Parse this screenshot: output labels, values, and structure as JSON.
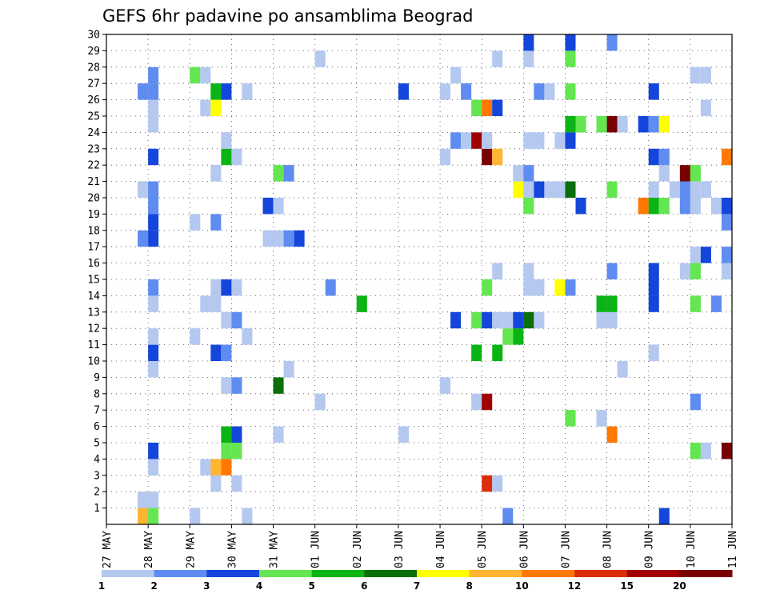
{
  "chart_data": {
    "type": "heatmap",
    "title": "GEFS 6hr padavine po ansamblima Beograd",
    "xlabel": "",
    "ylabel": "",
    "x_unit": "6-hour step",
    "x_range": [
      0,
      60
    ],
    "x_ticks": [
      {
        "step": 0,
        "label": "27 MAY"
      },
      {
        "step": 4,
        "label": "28 MAY"
      },
      {
        "step": 8,
        "label": "29 MAY"
      },
      {
        "step": 12,
        "label": "30 MAY"
      },
      {
        "step": 16,
        "label": "31 MAY"
      },
      {
        "step": 20,
        "label": "01 JUN"
      },
      {
        "step": 24,
        "label": "02 JUN"
      },
      {
        "step": 28,
        "label": "03 JUN"
      },
      {
        "step": 32,
        "label": "04 JUN"
      },
      {
        "step": 36,
        "label": "05 JUN"
      },
      {
        "step": 40,
        "label": "06 JUN"
      },
      {
        "step": 44,
        "label": "07 JUN"
      },
      {
        "step": 48,
        "label": "08 JUN"
      },
      {
        "step": 52,
        "label": "09 JUN"
      },
      {
        "step": 56,
        "label": "10 JUN"
      },
      {
        "step": 60,
        "label": "11 JUN"
      }
    ],
    "y_range": [
      0,
      30
    ],
    "y_ticks": [
      "1",
      "2",
      "3",
      "4",
      "5",
      "6",
      "7",
      "8",
      "9",
      "10",
      "11",
      "12",
      "13",
      "14",
      "15",
      "16",
      "17",
      "18",
      "19",
      "20",
      "21",
      "22",
      "23",
      "24",
      "25",
      "26",
      "27",
      "28",
      "29",
      "30"
    ],
    "grid": true,
    "colorbar": {
      "placement": "bottom",
      "labels": [
        "1",
        "2",
        "3",
        "4",
        "5",
        "6",
        "7",
        "8",
        "10",
        "12",
        "15",
        "20"
      ],
      "colors": [
        "#b4c8f0",
        "#5f8cf0",
        "#1446dc",
        "#64e650",
        "#0ab414",
        "#0a6e0a",
        "#ffff00",
        "#ffb432",
        "#ff7800",
        "#dc2d0a",
        "#a00000",
        "#780000"
      ]
    },
    "cells": [
      {
        "x": 3,
        "y": 0,
        "v": 9
      },
      {
        "x": 4,
        "y": 0,
        "v": 4.5
      },
      {
        "x": 8,
        "y": 0,
        "v": 1.5
      },
      {
        "x": 13,
        "y": 0,
        "v": 1.5
      },
      {
        "x": 38,
        "y": 0,
        "v": 2.5
      },
      {
        "x": 53,
        "y": 0,
        "v": 3.5
      },
      {
        "x": 3,
        "y": 1,
        "v": 1.5
      },
      {
        "x": 4,
        "y": 1,
        "v": 1.5
      },
      {
        "x": 36,
        "y": 2,
        "v": 13
      },
      {
        "x": 37,
        "y": 2,
        "v": 1.5
      },
      {
        "x": 10,
        "y": 2,
        "v": 1.5
      },
      {
        "x": 12,
        "y": 2,
        "v": 1.5
      },
      {
        "x": 4,
        "y": 3,
        "v": 1.5
      },
      {
        "x": 9,
        "y": 3,
        "v": 1.5
      },
      {
        "x": 10,
        "y": 3,
        "v": 9
      },
      {
        "x": 11,
        "y": 3,
        "v": 11
      },
      {
        "x": 4,
        "y": 4,
        "v": 3.5
      },
      {
        "x": 11,
        "y": 4,
        "v": 4.5
      },
      {
        "x": 12,
        "y": 4,
        "v": 4.5
      },
      {
        "x": 56,
        "y": 4,
        "v": 4.5
      },
      {
        "x": 57,
        "y": 4,
        "v": 1.5
      },
      {
        "x": 59,
        "y": 4,
        "v": 22
      },
      {
        "x": 11,
        "y": 5,
        "v": 5.5
      },
      {
        "x": 12,
        "y": 5,
        "v": 3.5
      },
      {
        "x": 16,
        "y": 5,
        "v": 1.5
      },
      {
        "x": 28,
        "y": 5,
        "v": 1.5
      },
      {
        "x": 48,
        "y": 5,
        "v": 11
      },
      {
        "x": 44,
        "y": 6,
        "v": 4.5
      },
      {
        "x": 47,
        "y": 6,
        "v": 1.5
      },
      {
        "x": 20,
        "y": 7,
        "v": 1.5
      },
      {
        "x": 35,
        "y": 7,
        "v": 1.5
      },
      {
        "x": 36,
        "y": 7,
        "v": 17
      },
      {
        "x": 56,
        "y": 7,
        "v": 2.5
      },
      {
        "x": 11,
        "y": 8,
        "v": 1.5
      },
      {
        "x": 12,
        "y": 8,
        "v": 2.5
      },
      {
        "x": 16,
        "y": 8,
        "v": 6.5
      },
      {
        "x": 32,
        "y": 8,
        "v": 1.5
      },
      {
        "x": 4,
        "y": 9,
        "v": 1.5
      },
      {
        "x": 17,
        "y": 9,
        "v": 1.5
      },
      {
        "x": 49,
        "y": 9,
        "v": 1.5
      },
      {
        "x": 4,
        "y": 10,
        "v": 3.5
      },
      {
        "x": 10,
        "y": 10,
        "v": 3.5
      },
      {
        "x": 11,
        "y": 10,
        "v": 2.5
      },
      {
        "x": 35,
        "y": 10,
        "v": 5.5
      },
      {
        "x": 37,
        "y": 10,
        "v": 5.5
      },
      {
        "x": 52,
        "y": 10,
        "v": 1.5
      },
      {
        "x": 4,
        "y": 11,
        "v": 1.5
      },
      {
        "x": 8,
        "y": 11,
        "v": 1.5
      },
      {
        "x": 13,
        "y": 11,
        "v": 1.5
      },
      {
        "x": 38,
        "y": 11,
        "v": 4.5
      },
      {
        "x": 39,
        "y": 11,
        "v": 5.5
      },
      {
        "x": 11,
        "y": 12,
        "v": 1.5
      },
      {
        "x": 12,
        "y": 12,
        "v": 2.5
      },
      {
        "x": 33,
        "y": 12,
        "v": 3.5
      },
      {
        "x": 35,
        "y": 12,
        "v": 4.5
      },
      {
        "x": 36,
        "y": 12,
        "v": 3.5
      },
      {
        "x": 37,
        "y": 12,
        "v": 1.5
      },
      {
        "x": 38,
        "y": 12,
        "v": 1.5
      },
      {
        "x": 39,
        "y": 12,
        "v": 3.5
      },
      {
        "x": 40,
        "y": 12,
        "v": 6.5
      },
      {
        "x": 41,
        "y": 12,
        "v": 1.5
      },
      {
        "x": 47,
        "y": 12,
        "v": 1.5
      },
      {
        "x": 48,
        "y": 12,
        "v": 1.5
      },
      {
        "x": 4,
        "y": 13,
        "v": 1.5
      },
      {
        "x": 9,
        "y": 13,
        "v": 1.5
      },
      {
        "x": 10,
        "y": 13,
        "v": 1.5
      },
      {
        "x": 24,
        "y": 13,
        "v": 5.5
      },
      {
        "x": 47,
        "y": 13,
        "v": 5.5
      },
      {
        "x": 48,
        "y": 13,
        "v": 5.5
      },
      {
        "x": 52,
        "y": 13,
        "v": 3.5
      },
      {
        "x": 56,
        "y": 13,
        "v": 4.5
      },
      {
        "x": 58,
        "y": 13,
        "v": 2.5
      },
      {
        "x": 60,
        "y": 13,
        "v": 4.5
      },
      {
        "x": 4,
        "y": 14,
        "v": 2.5
      },
      {
        "x": 10,
        "y": 14,
        "v": 1.5
      },
      {
        "x": 11,
        "y": 14,
        "v": 3.5
      },
      {
        "x": 12,
        "y": 14,
        "v": 1.5
      },
      {
        "x": 21,
        "y": 14,
        "v": 2.5
      },
      {
        "x": 36,
        "y": 14,
        "v": 4.5
      },
      {
        "x": 40,
        "y": 14,
        "v": 1.5
      },
      {
        "x": 41,
        "y": 14,
        "v": 1.5
      },
      {
        "x": 43,
        "y": 14,
        "v": 7.5
      },
      {
        "x": 44,
        "y": 14,
        "v": 2.5
      },
      {
        "x": 52,
        "y": 14,
        "v": 3.5
      },
      {
        "x": 37,
        "y": 15,
        "v": 1.5
      },
      {
        "x": 40,
        "y": 15,
        "v": 1.5
      },
      {
        "x": 48,
        "y": 15,
        "v": 2.5
      },
      {
        "x": 52,
        "y": 15,
        "v": 3.5
      },
      {
        "x": 55,
        "y": 15,
        "v": 1.5
      },
      {
        "x": 56,
        "y": 15,
        "v": 4.5
      },
      {
        "x": 59,
        "y": 15,
        "v": 1.5
      },
      {
        "x": 56,
        "y": 16,
        "v": 1.5
      },
      {
        "x": 57,
        "y": 16,
        "v": 3.5
      },
      {
        "x": 59,
        "y": 16,
        "v": 2.5
      },
      {
        "x": 60,
        "y": 16,
        "v": 1.5
      },
      {
        "x": 3,
        "y": 17,
        "v": 2.5
      },
      {
        "x": 4,
        "y": 17,
        "v": 3.5
      },
      {
        "x": 15,
        "y": 17,
        "v": 1.5
      },
      {
        "x": 16,
        "y": 17,
        "v": 1.5
      },
      {
        "x": 17,
        "y": 17,
        "v": 2.5
      },
      {
        "x": 18,
        "y": 17,
        "v": 3.5
      },
      {
        "x": 4,
        "y": 18,
        "v": 3.5
      },
      {
        "x": 8,
        "y": 18,
        "v": 1.5
      },
      {
        "x": 10,
        "y": 18,
        "v": 2.5
      },
      {
        "x": 59,
        "y": 18,
        "v": 2.5
      },
      {
        "x": 60,
        "y": 18,
        "v": 6.5
      },
      {
        "x": 4,
        "y": 19,
        "v": 2.5
      },
      {
        "x": 15,
        "y": 19,
        "v": 3.5
      },
      {
        "x": 16,
        "y": 19,
        "v": 1.5
      },
      {
        "x": 40,
        "y": 19,
        "v": 4.5
      },
      {
        "x": 45,
        "y": 19,
        "v": 3.5
      },
      {
        "x": 51,
        "y": 19,
        "v": 11
      },
      {
        "x": 52,
        "y": 19,
        "v": 5.5
      },
      {
        "x": 53,
        "y": 19,
        "v": 4.5
      },
      {
        "x": 55,
        "y": 19,
        "v": 2.5
      },
      {
        "x": 56,
        "y": 19,
        "v": 1.5
      },
      {
        "x": 58,
        "y": 19,
        "v": 1.5
      },
      {
        "x": 59,
        "y": 19,
        "v": 3.5
      },
      {
        "x": 60,
        "y": 19,
        "v": 2.5
      },
      {
        "x": 3,
        "y": 20,
        "v": 1.5
      },
      {
        "x": 4,
        "y": 20,
        "v": 2.5
      },
      {
        "x": 39,
        "y": 20,
        "v": 7.5
      },
      {
        "x": 40,
        "y": 20,
        "v": 1.5
      },
      {
        "x": 41,
        "y": 20,
        "v": 3.5
      },
      {
        "x": 42,
        "y": 20,
        "v": 1.5
      },
      {
        "x": 43,
        "y": 20,
        "v": 1.5
      },
      {
        "x": 44,
        "y": 20,
        "v": 6.5
      },
      {
        "x": 48,
        "y": 20,
        "v": 4.5
      },
      {
        "x": 52,
        "y": 20,
        "v": 1.5
      },
      {
        "x": 54,
        "y": 20,
        "v": 1.5
      },
      {
        "x": 55,
        "y": 20,
        "v": 2.5
      },
      {
        "x": 56,
        "y": 20,
        "v": 1.5
      },
      {
        "x": 57,
        "y": 20,
        "v": 1.5
      },
      {
        "x": 10,
        "y": 21,
        "v": 1.5
      },
      {
        "x": 16,
        "y": 21,
        "v": 4.5
      },
      {
        "x": 17,
        "y": 21,
        "v": 2.5
      },
      {
        "x": 39,
        "y": 21,
        "v": 1.5
      },
      {
        "x": 40,
        "y": 21,
        "v": 2.5
      },
      {
        "x": 53,
        "y": 21,
        "v": 1.5
      },
      {
        "x": 55,
        "y": 21,
        "v": 22
      },
      {
        "x": 56,
        "y": 21,
        "v": 4.5
      },
      {
        "x": 4,
        "y": 22,
        "v": 3.5
      },
      {
        "x": 11,
        "y": 22,
        "v": 5.5
      },
      {
        "x": 12,
        "y": 22,
        "v": 1.5
      },
      {
        "x": 32,
        "y": 22,
        "v": 1.5
      },
      {
        "x": 36,
        "y": 22,
        "v": 22
      },
      {
        "x": 37,
        "y": 22,
        "v": 9
      },
      {
        "x": 52,
        "y": 22,
        "v": 3.5
      },
      {
        "x": 53,
        "y": 22,
        "v": 2.5
      },
      {
        "x": 59,
        "y": 22,
        "v": 11
      },
      {
        "x": 11,
        "y": 23,
        "v": 1.5
      },
      {
        "x": 33,
        "y": 23,
        "v": 2.5
      },
      {
        "x": 34,
        "y": 23,
        "v": 1.5
      },
      {
        "x": 35,
        "y": 23,
        "v": 17
      },
      {
        "x": 36,
        "y": 23,
        "v": 1.5
      },
      {
        "x": 40,
        "y": 23,
        "v": 1.5
      },
      {
        "x": 41,
        "y": 23,
        "v": 1.5
      },
      {
        "x": 43,
        "y": 23,
        "v": 1.5
      },
      {
        "x": 44,
        "y": 23,
        "v": 3.5
      },
      {
        "x": 4,
        "y": 24,
        "v": 1.5
      },
      {
        "x": 44,
        "y": 24,
        "v": 5.5
      },
      {
        "x": 45,
        "y": 24,
        "v": 4.5
      },
      {
        "x": 47,
        "y": 24,
        "v": 4.5
      },
      {
        "x": 48,
        "y": 24,
        "v": 22
      },
      {
        "x": 49,
        "y": 24,
        "v": 1.5
      },
      {
        "x": 51,
        "y": 24,
        "v": 3.5
      },
      {
        "x": 52,
        "y": 24,
        "v": 2.5
      },
      {
        "x": 53,
        "y": 24,
        "v": 7.5
      },
      {
        "x": 4,
        "y": 25,
        "v": 1.5
      },
      {
        "x": 9,
        "y": 25,
        "v": 1.5
      },
      {
        "x": 10,
        "y": 25,
        "v": 7.5
      },
      {
        "x": 35,
        "y": 25,
        "v": 4.5
      },
      {
        "x": 36,
        "y": 25,
        "v": 11
      },
      {
        "x": 37,
        "y": 25,
        "v": 3.5
      },
      {
        "x": 57,
        "y": 25,
        "v": 1.5
      },
      {
        "x": 60,
        "y": 25,
        "v": 2.5
      },
      {
        "x": 3,
        "y": 26,
        "v": 2.5
      },
      {
        "x": 4,
        "y": 26,
        "v": 2.5
      },
      {
        "x": 10,
        "y": 26,
        "v": 5.5
      },
      {
        "x": 11,
        "y": 26,
        "v": 3.5
      },
      {
        "x": 13,
        "y": 26,
        "v": 1.5
      },
      {
        "x": 28,
        "y": 26,
        "v": 3.5
      },
      {
        "x": 32,
        "y": 26,
        "v": 1.5
      },
      {
        "x": 34,
        "y": 26,
        "v": 2.5
      },
      {
        "x": 41,
        "y": 26,
        "v": 2.5
      },
      {
        "x": 42,
        "y": 26,
        "v": 1.5
      },
      {
        "x": 44,
        "y": 26,
        "v": 4.5
      },
      {
        "x": 52,
        "y": 26,
        "v": 3.5
      },
      {
        "x": 4,
        "y": 27,
        "v": 2.5
      },
      {
        "x": 8,
        "y": 27,
        "v": 4.5
      },
      {
        "x": 9,
        "y": 27,
        "v": 1.5
      },
      {
        "x": 33,
        "y": 27,
        "v": 1.5
      },
      {
        "x": 56,
        "y": 27,
        "v": 1.5
      },
      {
        "x": 57,
        "y": 27,
        "v": 1.5
      },
      {
        "x": 20,
        "y": 28,
        "v": 1.5
      },
      {
        "x": 37,
        "y": 28,
        "v": 1.5
      },
      {
        "x": 40,
        "y": 28,
        "v": 1.5
      },
      {
        "x": 44,
        "y": 28,
        "v": 4.5
      },
      {
        "x": 40,
        "y": 29,
        "v": 3.5
      },
      {
        "x": 44,
        "y": 29,
        "v": 3.5
      },
      {
        "x": 48,
        "y": 29,
        "v": 2.5
      }
    ]
  }
}
